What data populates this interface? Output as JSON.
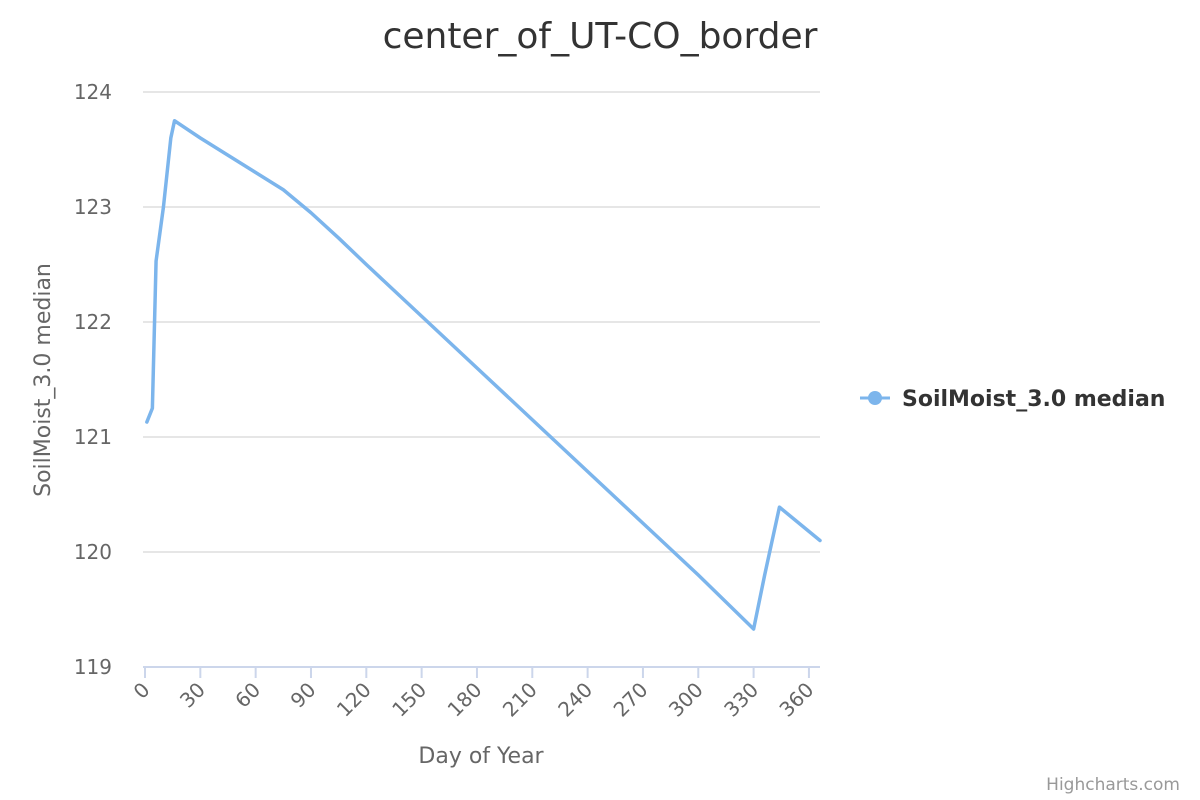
{
  "chart_data": {
    "type": "line",
    "title": "center_of_UT-CO_border",
    "xlabel": "Day of Year",
    "ylabel": "SoilMoist_3.0 median",
    "xlim": [
      0,
      366
    ],
    "ylim": [
      119,
      124
    ],
    "x_ticks": [
      "0",
      "30",
      "60",
      "90",
      "120",
      "150",
      "180",
      "210",
      "240",
      "270",
      "300",
      "330",
      "360"
    ],
    "y_ticks": [
      "119",
      "120",
      "121",
      "122",
      "123",
      "124"
    ],
    "grid": true,
    "legend_position": "right",
    "series": [
      {
        "name": "SoilMoist_3.0 median",
        "color": "#7cb5ec",
        "x": [
          1,
          4,
          6,
          10,
          14,
          16,
          30,
          45,
          60,
          75,
          90,
          105,
          120,
          150,
          180,
          210,
          240,
          270,
          300,
          330,
          336,
          344,
          366
        ],
        "y": [
          121.13,
          121.25,
          122.53,
          123.0,
          123.6,
          123.75,
          123.6,
          123.45,
          123.3,
          123.15,
          122.95,
          122.73,
          122.5,
          122.05,
          121.6,
          121.15,
          120.7,
          120.25,
          119.8,
          119.33,
          119.8,
          120.39,
          120.1
        ]
      }
    ]
  },
  "credits": "Highcharts.com"
}
